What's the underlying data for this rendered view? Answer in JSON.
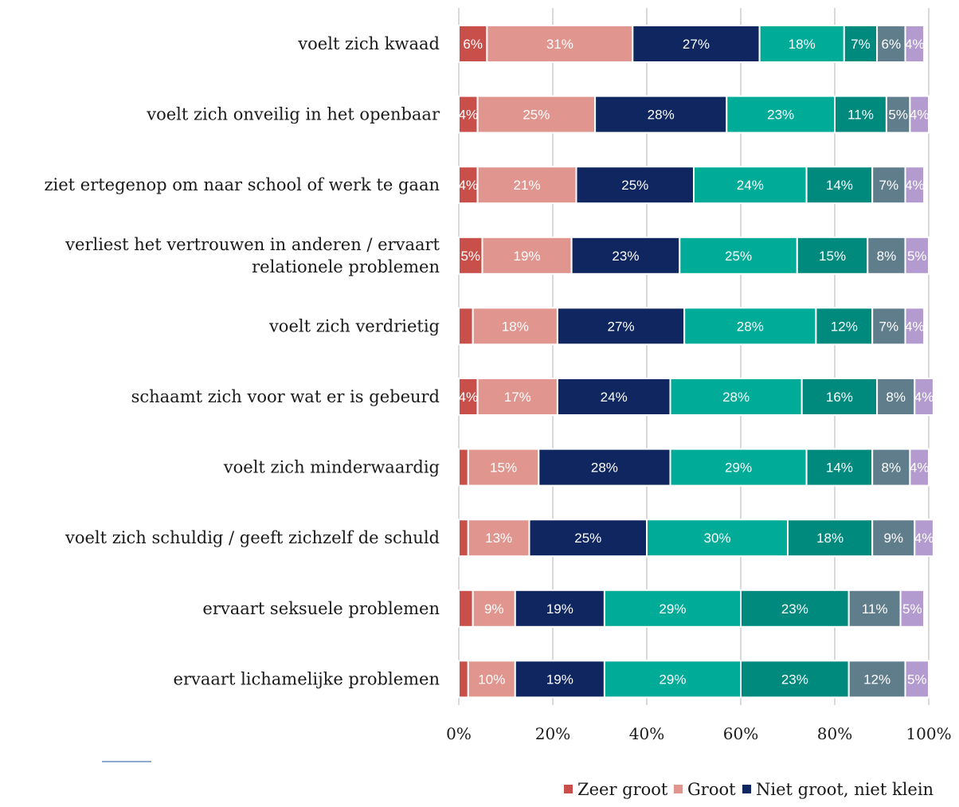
{
  "chart_data": {
    "type": "bar",
    "orientation": "horizontal",
    "stacked": true,
    "categories": [
      "voelt zich kwaad",
      "voelt zich onveilig in het openbaar",
      "ziet ertegenop om naar school of werk te gaan",
      "verliest het vertrouwen in anderen / ervaart relationele problemen",
      "voelt zich verdrietig",
      "schaamt zich voor wat er is gebeurd",
      "voelt zich minderwaardig",
      "voelt zich schuldig / geeft zichzelf de schuld",
      "ervaart seksuele problemen",
      "ervaart lichamelijke problemen"
    ],
    "category_lines": [
      [
        "voelt zich kwaad"
      ],
      [
        "voelt zich onveilig in het openbaar"
      ],
      [
        "ziet ertegenop om naar school of werk te gaan"
      ],
      [
        "verliest het vertrouwen in anderen / ervaart",
        "relationele problemen"
      ],
      [
        "voelt zich verdrietig"
      ],
      [
        "schaamt zich voor wat er is gebeurd"
      ],
      [
        "voelt zich minderwaardig"
      ],
      [
        "voelt zich schuldig / geeft zichzelf de schuld"
      ],
      [
        "ervaart seksuele problemen"
      ],
      [
        "ervaart lichamelijke problemen"
      ]
    ],
    "series": [
      {
        "name": "Zeer groot",
        "color": "#c9504a",
        "values": [
          6,
          4,
          4,
          5,
          3,
          4,
          2,
          2,
          3,
          2
        ]
      },
      {
        "name": "Groot",
        "color": "#e0958f",
        "values": [
          31,
          25,
          21,
          19,
          18,
          17,
          15,
          13,
          9,
          10
        ]
      },
      {
        "name": "Niet groot, niet klein",
        "color": "#0f2660",
        "values": [
          27,
          28,
          25,
          23,
          27,
          24,
          28,
          25,
          19,
          19
        ]
      },
      {
        "name": "",
        "color": "#00ab98",
        "values": [
          18,
          23,
          24,
          25,
          28,
          28,
          29,
          30,
          29,
          29
        ]
      },
      {
        "name": "",
        "color": "#008a7e",
        "values": [
          7,
          11,
          14,
          15,
          12,
          16,
          14,
          18,
          23,
          23
        ]
      },
      {
        "name": "",
        "color": "#607d8b",
        "values": [
          6,
          5,
          7,
          8,
          7,
          8,
          8,
          9,
          11,
          12
        ]
      },
      {
        "name": "",
        "color": "#b39bcf",
        "values": [
          4,
          4,
          4,
          5,
          4,
          4,
          4,
          4,
          5,
          5
        ]
      }
    ],
    "data_labels": [
      [
        "6%",
        "31%",
        "27%",
        "18%",
        "7%",
        "6%",
        "4%"
      ],
      [
        "4%",
        "25%",
        "28%",
        "23%",
        "11%",
        "5%",
        "4%"
      ],
      [
        "4%",
        "21%",
        "25%",
        "24%",
        "14%",
        "7%",
        "4%"
      ],
      [
        "5%",
        "19%",
        "23%",
        "25%",
        "15%",
        "8%",
        "5%"
      ],
      [
        "",
        "18%",
        "27%",
        "28%",
        "12%",
        "7%",
        "4%"
      ],
      [
        "4%",
        "17%",
        "24%",
        "28%",
        "16%",
        "8%",
        "4%"
      ],
      [
        "",
        "15%",
        "28%",
        "29%",
        "14%",
        "8%",
        "4%"
      ],
      [
        "",
        "13%",
        "25%",
        "30%",
        "18%",
        "9%",
        "4%"
      ],
      [
        "",
        "9%",
        "19%",
        "29%",
        "23%",
        "11%",
        "5%"
      ],
      [
        "",
        "10%",
        "19%",
        "29%",
        "23%",
        "12%",
        "5%"
      ]
    ],
    "xticks": [
      "0%",
      "20%",
      "40%",
      "60%",
      "80%",
      "100%"
    ],
    "xlim": [
      0,
      100
    ],
    "grid": true,
    "legend": {
      "position": "bottom",
      "entries": [
        "Zeer groot",
        "Groot",
        "Niet groot, niet klein"
      ]
    },
    "title": "",
    "xlabel": "",
    "ylabel": ""
  }
}
